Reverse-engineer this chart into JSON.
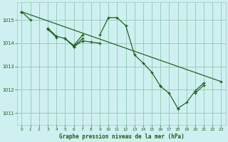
{
  "title": "Graphe pression niveau de la mer (hPa)",
  "bg_color": "#cff0f0",
  "grid_color": "#99ccbb",
  "line_color": "#1a5c1a",
  "marker": "+",
  "xlim": [
    -0.5,
    23.5
  ],
  "ylim": [
    1010.5,
    1015.75
  ],
  "yticks": [
    1011,
    1012,
    1013,
    1014,
    1015
  ],
  "xticks": [
    0,
    1,
    2,
    3,
    4,
    5,
    6,
    7,
    8,
    9,
    10,
    11,
    12,
    13,
    14,
    15,
    16,
    17,
    18,
    19,
    20,
    21,
    22,
    23
  ],
  "series": {
    "line1": [
      1015.35,
      1015.0,
      null,
      1014.65,
      1014.3,
      1014.2,
      1013.9,
      1014.35,
      null,
      1014.35,
      1015.1,
      1015.1,
      1014.75,
      1013.5,
      1013.15,
      1012.75,
      1012.15,
      null,
      1011.2,
      1011.45,
      1011.95,
      1012.3,
      null,
      null
    ],
    "line2": [
      1015.35,
      null,
      null,
      1014.6,
      1014.25,
      null,
      1013.85,
      1014.2,
      null,
      null,
      null,
      null,
      null,
      null,
      null,
      null,
      null,
      null,
      null,
      null,
      null,
      null,
      null,
      null
    ],
    "line3": [
      1015.35,
      null,
      null,
      null,
      null,
      1014.2,
      1013.85,
      1014.1,
      1014.05,
      1014.0,
      null,
      null,
      null,
      null,
      null,
      null,
      null,
      null,
      null,
      null,
      null,
      null,
      null,
      null
    ],
    "line4": [
      null,
      null,
      null,
      null,
      null,
      null,
      null,
      null,
      null,
      null,
      null,
      null,
      null,
      null,
      null,
      null,
      1012.15,
      1011.85,
      1011.2,
      null,
      1011.85,
      1012.2,
      null,
      1012.35
    ],
    "trend_x": [
      0,
      23
    ],
    "trend_y": [
      1015.35,
      1012.35
    ]
  }
}
